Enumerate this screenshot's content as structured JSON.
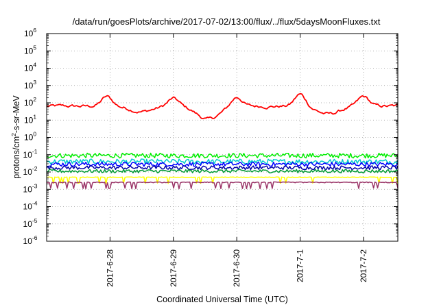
{
  "chart_data": {
    "type": "line",
    "title": "/data/run/goesPlots/archive/2017-07-02/13:00/flux/../flux/5daysMoonFluxes.txt",
    "xlabel": "Coordinated Universal Time (UTC)",
    "ylabel": "protons/cm2-s-sr-MeV",
    "yscale": "log",
    "ylim_exponents": [
      -6,
      6
    ],
    "y_ticks": [
      {
        "base": "10",
        "exp": "-6"
      },
      {
        "base": "10",
        "exp": "-5"
      },
      {
        "base": "10",
        "exp": "-4"
      },
      {
        "base": "10",
        "exp": "-3"
      },
      {
        "base": "10",
        "exp": "-2"
      },
      {
        "base": "10",
        "exp": "-1"
      },
      {
        "base": "10",
        "exp": "0"
      },
      {
        "base": "10",
        "exp": "1"
      },
      {
        "base": "10",
        "exp": "2"
      },
      {
        "base": "10",
        "exp": "3"
      },
      {
        "base": "10",
        "exp": "4"
      },
      {
        "base": "10",
        "exp": "5"
      },
      {
        "base": "10",
        "exp": "6"
      }
    ],
    "xlim_days": [
      "2017-06-27 00:00",
      "2017-07-02 13:00"
    ],
    "x_ticks": [
      "2017-6-28",
      "2017-6-29",
      "2017-6-30",
      "2017-7-1",
      "2017-7-2"
    ],
    "grid": true,
    "series": [
      {
        "color": "#ff0000",
        "log10_base": 1.8,
        "noise": 0.18,
        "peaks": [
          [
            0.95,
            0.55
          ],
          [
            2.0,
            0.45
          ],
          [
            3.0,
            0.55
          ],
          [
            4.0,
            0.7
          ],
          [
            5.0,
            0.55
          ]
        ],
        "dips": [
          [
            1.5,
            0.3
          ],
          [
            2.55,
            0.75
          ],
          [
            4.45,
            0.45
          ]
        ]
      },
      {
        "color": "#00ee00",
        "log10_base": -1.05,
        "noise": 0.28,
        "peaks": [],
        "dips": []
      },
      {
        "color": "#00cccc",
        "log10_base": -1.4,
        "noise": 0.3,
        "peaks": [],
        "dips": []
      },
      {
        "color": "#0000ff",
        "log10_base": -1.55,
        "noise": 0.25,
        "peaks": [],
        "dips": []
      },
      {
        "color": "#0000aa",
        "log10_base": -1.75,
        "noise": 0.22,
        "peaks": [],
        "dips": []
      },
      {
        "color": "#009933",
        "log10_base": -1.95,
        "noise": 0.2,
        "peaks": [],
        "dips": []
      },
      {
        "color": "#ffff00",
        "log10_base": -2.3,
        "noise": 0.03,
        "peaks": [],
        "dips": []
      },
      {
        "color": "#993366",
        "log10_base": -2.6,
        "noise": 0.05,
        "peaks": [],
        "dips": []
      }
    ]
  }
}
